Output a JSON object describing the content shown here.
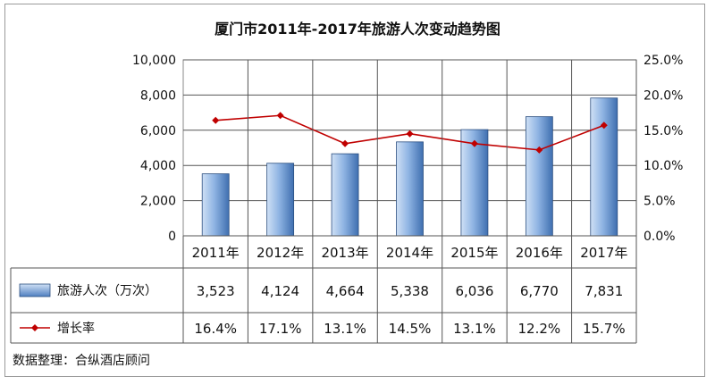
{
  "chart_data": {
    "type": "bar",
    "title": "厦门市2011年-2017年旅游人次变动趋势图",
    "categories": [
      "2011年",
      "2012年",
      "2013年",
      "2014年",
      "2015年",
      "2016年",
      "2017年"
    ],
    "series": [
      {
        "name": "旅游人次（万次）",
        "type": "bar",
        "axis": "left",
        "values": [
          3523,
          4124,
          4664,
          5338,
          6036,
          6770,
          7831
        ],
        "value_labels": [
          "3,523",
          "4,124",
          "4,664",
          "5,338",
          "6,036",
          "6,770",
          "7,831"
        ],
        "color": "#5b8fd1"
      },
      {
        "name": "增长率",
        "type": "line",
        "axis": "right",
        "values": [
          16.4,
          17.1,
          13.1,
          14.5,
          13.1,
          12.2,
          15.7
        ],
        "value_labels": [
          "16.4%",
          "17.1%",
          "13.1%",
          "14.5%",
          "13.1%",
          "12.2%",
          "15.7%"
        ],
        "color": "#c00000"
      }
    ],
    "left_axis": {
      "ylim": [
        0,
        10000
      ],
      "ticks": [
        0,
        2000,
        4000,
        6000,
        8000,
        10000
      ],
      "tick_labels": [
        "0",
        "2,000",
        "4,000",
        "6,000",
        "8,000",
        "10,000"
      ]
    },
    "right_axis": {
      "ylim": [
        0,
        25
      ],
      "ticks": [
        0,
        5,
        10,
        15,
        20,
        25
      ],
      "tick_labels": [
        "0.0%",
        "5.0%",
        "10.0%",
        "15.0%",
        "20.0%",
        "25.0%"
      ]
    },
    "grid": true,
    "legend": "data-table"
  },
  "footer": {
    "source": "数据整理：合纵酒店顾问"
  }
}
